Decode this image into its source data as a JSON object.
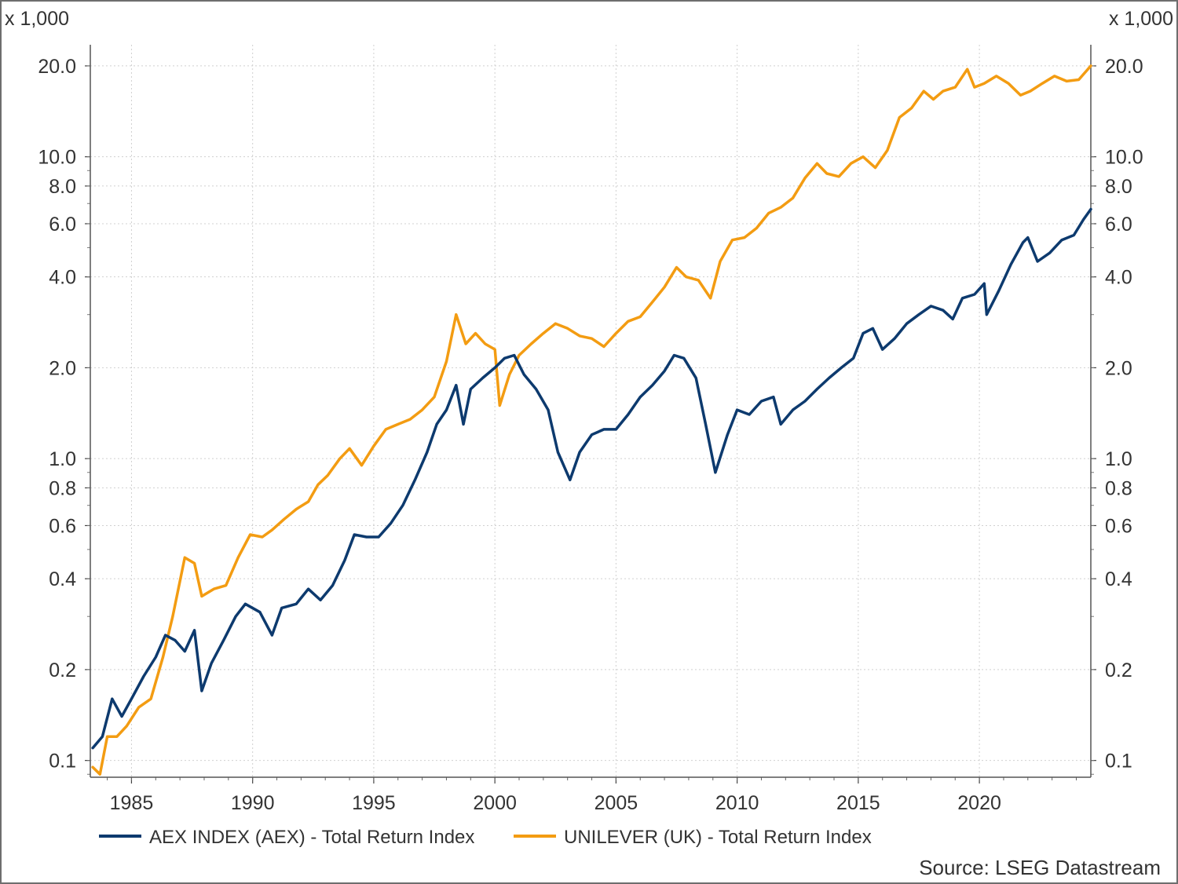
{
  "chart_data": {
    "type": "line",
    "y_scale": "log",
    "units_note_left": "x 1,000",
    "units_note_right": "x 1,000",
    "xlim": [
      1983.3,
      2024.6
    ],
    "ylim": [
      0.088,
      23.5
    ],
    "x_ticks": [
      1985,
      1990,
      1995,
      2000,
      2005,
      2010,
      2015,
      2020
    ],
    "x_tick_labels": [
      "1985",
      "1990",
      "1995",
      "2000",
      "2005",
      "2010",
      "2015",
      "2020"
    ],
    "y_ticks": [
      0.1,
      0.2,
      0.4,
      0.6,
      0.8,
      1.0,
      2.0,
      4.0,
      6.0,
      8.0,
      10.0,
      20.0
    ],
    "y_tick_labels": [
      "0.1",
      "0.2",
      "0.4",
      "0.6",
      "0.8",
      "1.0",
      "2.0",
      "4.0",
      "6.0",
      "8.0",
      "10.0",
      "20.0"
    ],
    "grid": true,
    "legend_position": "bottom",
    "source": "Source: LSEG Datastream",
    "series": [
      {
        "name": "AEX INDEX (AEX) - Total Return Index",
        "color": "#0d3a6e",
        "points": [
          [
            1983.4,
            0.11
          ],
          [
            1983.8,
            0.12
          ],
          [
            1984.2,
            0.16
          ],
          [
            1984.6,
            0.14
          ],
          [
            1985.0,
            0.16
          ],
          [
            1985.5,
            0.19
          ],
          [
            1986.0,
            0.22
          ],
          [
            1986.4,
            0.26
          ],
          [
            1986.8,
            0.25
          ],
          [
            1987.2,
            0.23
          ],
          [
            1987.6,
            0.27
          ],
          [
            1987.9,
            0.17
          ],
          [
            1988.3,
            0.21
          ],
          [
            1988.8,
            0.25
          ],
          [
            1989.3,
            0.3
          ],
          [
            1989.7,
            0.33
          ],
          [
            1990.3,
            0.31
          ],
          [
            1990.8,
            0.26
          ],
          [
            1991.2,
            0.32
          ],
          [
            1991.8,
            0.33
          ],
          [
            1992.3,
            0.37
          ],
          [
            1992.8,
            0.34
          ],
          [
            1993.3,
            0.38
          ],
          [
            1993.8,
            0.46
          ],
          [
            1994.2,
            0.56
          ],
          [
            1994.7,
            0.55
          ],
          [
            1995.2,
            0.55
          ],
          [
            1995.7,
            0.61
          ],
          [
            1996.2,
            0.7
          ],
          [
            1996.7,
            0.85
          ],
          [
            1997.2,
            1.05
          ],
          [
            1997.6,
            1.3
          ],
          [
            1998.0,
            1.45
          ],
          [
            1998.4,
            1.75
          ],
          [
            1998.7,
            1.3
          ],
          [
            1999.0,
            1.7
          ],
          [
            1999.5,
            1.85
          ],
          [
            2000.0,
            2.0
          ],
          [
            2000.4,
            2.15
          ],
          [
            2000.8,
            2.2
          ],
          [
            2001.2,
            1.9
          ],
          [
            2001.7,
            1.7
          ],
          [
            2002.2,
            1.45
          ],
          [
            2002.6,
            1.05
          ],
          [
            2003.1,
            0.85
          ],
          [
            2003.5,
            1.05
          ],
          [
            2004.0,
            1.2
          ],
          [
            2004.5,
            1.25
          ],
          [
            2005.0,
            1.25
          ],
          [
            2005.5,
            1.4
          ],
          [
            2006.0,
            1.6
          ],
          [
            2006.5,
            1.75
          ],
          [
            2007.0,
            1.95
          ],
          [
            2007.4,
            2.2
          ],
          [
            2007.8,
            2.15
          ],
          [
            2008.3,
            1.85
          ],
          [
            2008.7,
            1.3
          ],
          [
            2009.1,
            0.9
          ],
          [
            2009.6,
            1.2
          ],
          [
            2010.0,
            1.45
          ],
          [
            2010.5,
            1.4
          ],
          [
            2011.0,
            1.55
          ],
          [
            2011.5,
            1.6
          ],
          [
            2011.8,
            1.3
          ],
          [
            2012.3,
            1.45
          ],
          [
            2012.8,
            1.55
          ],
          [
            2013.3,
            1.7
          ],
          [
            2013.8,
            1.85
          ],
          [
            2014.3,
            2.0
          ],
          [
            2014.8,
            2.15
          ],
          [
            2015.2,
            2.6
          ],
          [
            2015.6,
            2.7
          ],
          [
            2016.0,
            2.3
          ],
          [
            2016.5,
            2.5
          ],
          [
            2017.0,
            2.8
          ],
          [
            2017.5,
            3.0
          ],
          [
            2018.0,
            3.2
          ],
          [
            2018.5,
            3.1
          ],
          [
            2018.9,
            2.9
          ],
          [
            2019.3,
            3.4
          ],
          [
            2019.8,
            3.5
          ],
          [
            2020.2,
            3.8
          ],
          [
            2020.3,
            3.0
          ],
          [
            2020.8,
            3.6
          ],
          [
            2021.3,
            4.4
          ],
          [
            2021.8,
            5.2
          ],
          [
            2022.0,
            5.4
          ],
          [
            2022.4,
            4.5
          ],
          [
            2022.9,
            4.8
          ],
          [
            2023.4,
            5.3
          ],
          [
            2023.9,
            5.5
          ],
          [
            2024.3,
            6.2
          ],
          [
            2024.6,
            6.7
          ]
        ]
      },
      {
        "name": "UNILEVER (UK) - Total Return Index",
        "color": "#f39c12",
        "points": [
          [
            1983.4,
            0.095
          ],
          [
            1983.7,
            0.09
          ],
          [
            1984.0,
            0.12
          ],
          [
            1984.4,
            0.12
          ],
          [
            1984.8,
            0.13
          ],
          [
            1985.3,
            0.15
          ],
          [
            1985.8,
            0.16
          ],
          [
            1986.3,
            0.22
          ],
          [
            1986.7,
            0.3
          ],
          [
            1987.2,
            0.47
          ],
          [
            1987.6,
            0.45
          ],
          [
            1987.9,
            0.35
          ],
          [
            1988.4,
            0.37
          ],
          [
            1988.9,
            0.38
          ],
          [
            1989.4,
            0.47
          ],
          [
            1989.9,
            0.56
          ],
          [
            1990.4,
            0.55
          ],
          [
            1990.8,
            0.58
          ],
          [
            1991.3,
            0.63
          ],
          [
            1991.8,
            0.68
          ],
          [
            1992.3,
            0.72
          ],
          [
            1992.7,
            0.82
          ],
          [
            1993.1,
            0.88
          ],
          [
            1993.6,
            1.0
          ],
          [
            1994.0,
            1.08
          ],
          [
            1994.5,
            0.95
          ],
          [
            1995.0,
            1.1
          ],
          [
            1995.5,
            1.25
          ],
          [
            1996.0,
            1.3
          ],
          [
            1996.5,
            1.35
          ],
          [
            1997.0,
            1.45
          ],
          [
            1997.5,
            1.6
          ],
          [
            1998.0,
            2.1
          ],
          [
            1998.4,
            3.0
          ],
          [
            1998.8,
            2.4
          ],
          [
            1999.2,
            2.6
          ],
          [
            1999.6,
            2.4
          ],
          [
            2000.0,
            2.3
          ],
          [
            2000.2,
            1.5
          ],
          [
            2000.6,
            1.9
          ],
          [
            2001.0,
            2.2
          ],
          [
            2001.5,
            2.4
          ],
          [
            2002.0,
            2.6
          ],
          [
            2002.5,
            2.8
          ],
          [
            2003.0,
            2.7
          ],
          [
            2003.5,
            2.55
          ],
          [
            2004.0,
            2.5
          ],
          [
            2004.5,
            2.35
          ],
          [
            2005.0,
            2.6
          ],
          [
            2005.5,
            2.85
          ],
          [
            2006.0,
            2.95
          ],
          [
            2006.5,
            3.3
          ],
          [
            2007.0,
            3.7
          ],
          [
            2007.5,
            4.3
          ],
          [
            2007.9,
            4.0
          ],
          [
            2008.4,
            3.9
          ],
          [
            2008.9,
            3.4
          ],
          [
            2009.3,
            4.5
          ],
          [
            2009.8,
            5.3
          ],
          [
            2010.3,
            5.4
          ],
          [
            2010.8,
            5.8
          ],
          [
            2011.3,
            6.5
          ],
          [
            2011.8,
            6.8
          ],
          [
            2012.3,
            7.3
          ],
          [
            2012.8,
            8.5
          ],
          [
            2013.3,
            9.5
          ],
          [
            2013.7,
            8.8
          ],
          [
            2014.2,
            8.6
          ],
          [
            2014.7,
            9.5
          ],
          [
            2015.2,
            10.0
          ],
          [
            2015.7,
            9.2
          ],
          [
            2016.2,
            10.5
          ],
          [
            2016.7,
            13.5
          ],
          [
            2017.2,
            14.5
          ],
          [
            2017.7,
            16.5
          ],
          [
            2018.1,
            15.5
          ],
          [
            2018.5,
            16.5
          ],
          [
            2019.0,
            17.0
          ],
          [
            2019.5,
            19.5
          ],
          [
            2019.8,
            17.0
          ],
          [
            2020.2,
            17.5
          ],
          [
            2020.7,
            18.5
          ],
          [
            2021.2,
            17.5
          ],
          [
            2021.7,
            16.0
          ],
          [
            2022.1,
            16.5
          ],
          [
            2022.6,
            17.5
          ],
          [
            2023.1,
            18.5
          ],
          [
            2023.6,
            17.8
          ],
          [
            2024.1,
            18.0
          ],
          [
            2024.6,
            20.0
          ]
        ]
      }
    ]
  }
}
